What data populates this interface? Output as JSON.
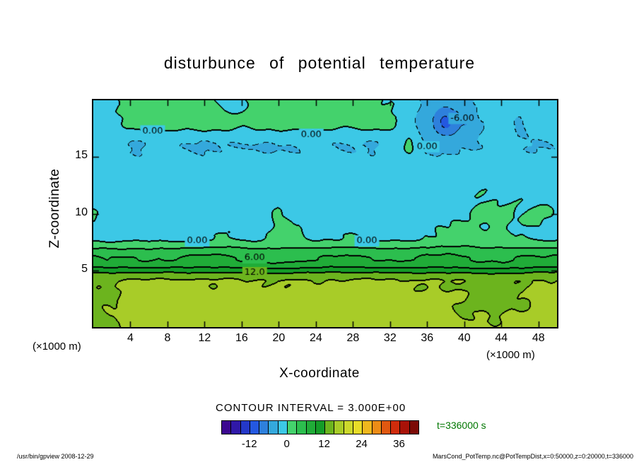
{
  "title": "disturbunce of potential temperature",
  "axes": {
    "x": {
      "label": "X-coordinate",
      "unit": "(×1000 m)",
      "ticks": [
        4,
        8,
        12,
        16,
        20,
        24,
        28,
        32,
        36,
        40,
        44,
        48
      ],
      "range": [
        0,
        50
      ]
    },
    "z": {
      "label": "Z-coordinate",
      "unit": "(×1000 m)",
      "ticks": [
        5,
        10,
        15
      ],
      "range": [
        0,
        20
      ]
    }
  },
  "contour": {
    "text": "CONTOUR INTERVAL = 3.000E+00",
    "interval": 3
  },
  "colorbar": {
    "min": -21,
    "max": 42,
    "step": 3,
    "ticks": [
      -12,
      0,
      12,
      24,
      36
    ],
    "colors": [
      "#3c0890",
      "#3018a8",
      "#2438c8",
      "#2458e0",
      "#2e80dc",
      "#34a8dc",
      "#3cc8e6",
      "#44d26c",
      "#2cbe4e",
      "#20ac38",
      "#149c28",
      "#6cb41e",
      "#a8cc28",
      "#ccd82c",
      "#e8dc28",
      "#f0b81e",
      "#ec8c16",
      "#e05810",
      "#d02c0c",
      "#a81208",
      "#7c0a06"
    ]
  },
  "time": {
    "text": "t=336000 s",
    "color": "#007700"
  },
  "footer": {
    "left": "/usr/bin/gpview  2008-12-29",
    "right": "MarsCond_PotTemp.nc@PotTempDist,x=0:50000,z=0:20000,t=336000"
  },
  "chart_data": {
    "type": "heatmap",
    "title": "disturbunce of potential temperature",
    "xlabel": "X-coordinate",
    "ylabel": "Z-coordinate",
    "x_units": "×1000 m",
    "z_units": "×1000 m",
    "xlim": [
      0,
      50
    ],
    "zlim": [
      0,
      20
    ],
    "contour_interval": 3,
    "legend": "filled contours every 3.0, negative contours dashed, colorbar -21 to 42",
    "x": [
      0,
      2,
      4,
      6,
      8,
      10,
      12,
      14,
      16,
      18,
      20,
      22,
      24,
      26,
      28,
      30,
      32,
      34,
      36,
      38,
      40,
      42,
      44,
      46,
      48,
      50
    ],
    "z": [
      0,
      2,
      4,
      6,
      8,
      10,
      12,
      14,
      16,
      18,
      20
    ],
    "values": [
      [
        14.5,
        14.6,
        15.8,
        16.2,
        16.2,
        16.3,
        16.2,
        16.1,
        16.2,
        16.3,
        16.2,
        16.2,
        16.1,
        16.2,
        16.3,
        16.2,
        16.2,
        16.1,
        16.2,
        16.0,
        15.3,
        15.2,
        15.2,
        15.4,
        15.6,
        16.0
      ],
      [
        14.6,
        14.9,
        15.5,
        15.8,
        15.9,
        15.8,
        15.8,
        15.7,
        15.8,
        15.9,
        15.8,
        15.8,
        15.7,
        15.8,
        15.8,
        15.8,
        15.7,
        15.6,
        15.6,
        15.4,
        14.9,
        14.6,
        14.6,
        15.0,
        15.4,
        15.6
      ],
      [
        14.7,
        14.9,
        15.1,
        15.2,
        15.3,
        15.2,
        15.1,
        15.2,
        15.3,
        15.2,
        15.1,
        15.2,
        15.1,
        15.2,
        15.3,
        15.2,
        15.1,
        15.0,
        15.1,
        15.0,
        14.9,
        14.8,
        14.9,
        15.0,
        15.1,
        15.2
      ],
      [
        6.5,
        6.2,
        6.0,
        5.8,
        6.0,
        6.3,
        6.6,
        6.4,
        6.0,
        5.6,
        5.2,
        5.6,
        6.2,
        6.6,
        6.4,
        6.0,
        5.8,
        6.0,
        6.4,
        6.6,
        6.2,
        5.8,
        5.6,
        6.0,
        6.4,
        6.6
      ],
      [
        -0.8,
        -0.9,
        -0.8,
        -0.7,
        -0.8,
        -0.9,
        -0.7,
        0.1,
        -0.4,
        -0.6,
        0.7,
        0.4,
        -0.5,
        -0.3,
        0.3,
        -0.4,
        -0.7,
        -0.5,
        -0.2,
        0.3,
        0.5,
        0.2,
        0.4,
        -0.2,
        -0.5,
        -0.6
      ],
      [
        0.2,
        -1.0,
        -1.5,
        -1.6,
        -1.5,
        -1.4,
        -1.5,
        -1.3,
        -1.5,
        -1.2,
        0.1,
        -0.8,
        -1.4,
        -1.3,
        -1.0,
        -1.4,
        -1.5,
        -1.3,
        -1.0,
        -0.5,
        -0.2,
        0.2,
        0.3,
        -0.1,
        0.4,
        -0.3
      ],
      [
        -1.8,
        -2.0,
        -2.1,
        -2.0,
        -1.9,
        -2.0,
        -2.1,
        -2.0,
        -1.9,
        -2.0,
        -1.8,
        -1.9,
        -2.0,
        -2.1,
        -1.9,
        -1.8,
        -1.9,
        -1.7,
        -1.4,
        -1.0,
        -0.6,
        -0.2,
        -0.5,
        -0.1,
        -0.4,
        -0.7
      ],
      [
        -2.0,
        -2.2,
        -2.3,
        -2.2,
        -2.1,
        -2.2,
        -2.3,
        -2.2,
        -2.1,
        -2.2,
        -2.3,
        -2.2,
        -2.1,
        -2.2,
        -2.3,
        -2.2,
        -2.1,
        -2.0,
        -2.1,
        -2.2,
        -2.0,
        -1.8,
        -1.9,
        -2.0,
        -1.8,
        -1.9
      ],
      [
        -2.6,
        -2.9,
        -3.2,
        -3.0,
        -2.7,
        -3.1,
        -3.3,
        -3.0,
        -2.8,
        -3.2,
        -3.1,
        -2.9,
        -2.7,
        -3.0,
        -3.2,
        -3.1,
        -2.9,
        0.4,
        -3.4,
        -3.6,
        -3.1,
        -2.9,
        -1.0,
        -2.8,
        -3.1,
        -2.9
      ],
      [
        -1.0,
        -0.5,
        0.3,
        1.2,
        1.0,
        0.6,
        1.1,
        0.9,
        0.4,
        1.0,
        1.3,
        0.8,
        1.2,
        0.7,
        0.3,
        0.8,
        0.5,
        -1.8,
        -5.0,
        -9.8,
        -6.2,
        -2.8,
        -1.4,
        -3.4,
        -1.0,
        -1.2
      ],
      [
        -0.8,
        -0.3,
        0.5,
        1.0,
        0.8,
        0.4,
        0.9,
        -0.6,
        -0.2,
        0.8,
        1.0,
        0.6,
        0.9,
        0.5,
        0.1,
        0.4,
        0.0,
        -1.2,
        -3.5,
        -5.0,
        -4.0,
        -2.0,
        -1.0,
        -1.2,
        -0.8,
        -1.0
      ]
    ],
    "contour_labels": [
      {
        "text": "0.00",
        "x": 6.4,
        "z": 17.3
      },
      {
        "text": "0.00",
        "x": 23.5,
        "z": 17.0
      },
      {
        "text": "0.00",
        "x": 36.0,
        "z": 15.9
      },
      {
        "text": "-6.00",
        "x": 39.8,
        "z": 18.4
      },
      {
        "text": "0.00",
        "x": 11.2,
        "z": 7.6
      },
      {
        "text": "0.00",
        "x": 29.5,
        "z": 7.6
      },
      {
        "text": "6.00",
        "x": 17.4,
        "z": 6.1
      },
      {
        "text": "12.0",
        "x": 17.4,
        "z": 4.8
      }
    ]
  }
}
